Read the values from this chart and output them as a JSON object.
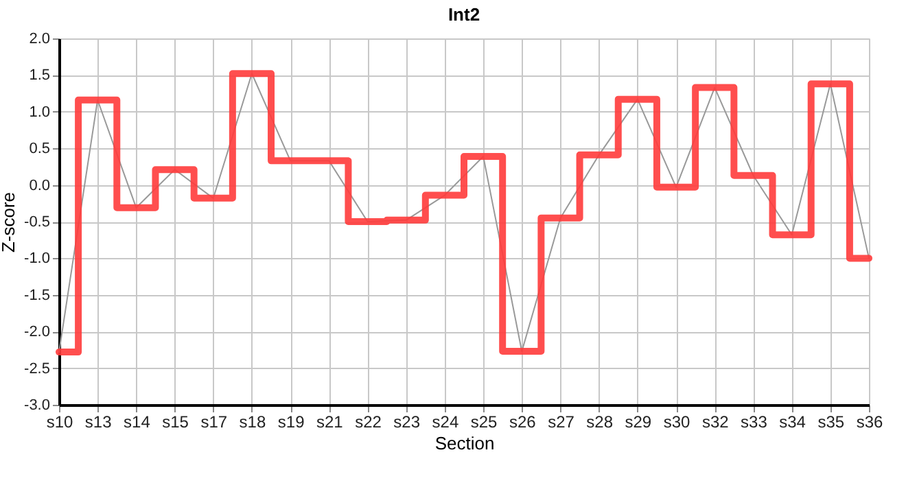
{
  "chart_data": {
    "type": "line",
    "title": "Int2",
    "xlabel": "Section",
    "ylabel": "Z-score",
    "categories": [
      "s10",
      "s13",
      "s14",
      "s15",
      "s17",
      "s18",
      "s19",
      "s21",
      "s22",
      "s23",
      "s24",
      "s25",
      "s26",
      "s27",
      "s28",
      "s29",
      "s30",
      "s32",
      "s33",
      "s34",
      "s35",
      "s36"
    ],
    "series": [
      {
        "color": "#999999",
        "values": [
          -2.28,
          1.16,
          -0.31,
          0.21,
          -0.18,
          1.52,
          0.33,
          0.33,
          -0.5,
          -0.48,
          -0.14,
          0.39,
          -2.27,
          -0.45,
          0.41,
          1.17,
          -0.03,
          1.33,
          0.13,
          -0.68,
          1.38,
          -1.0
        ]
      },
      {
        "type": "step",
        "color": "#ff3b3b",
        "values": [
          -2.28,
          1.16,
          -0.31,
          0.21,
          -0.18,
          1.52,
          0.33,
          0.33,
          -0.5,
          -0.48,
          -0.14,
          0.39,
          -2.27,
          -0.45,
          0.41,
          1.17,
          -0.03,
          1.33,
          0.13,
          -0.68,
          1.38,
          -1.0
        ]
      }
    ],
    "ylim": [
      -3.0,
      2.0
    ],
    "yticks": [
      {
        "value": -3,
        "label": "-3.0"
      },
      {
        "value": -2.5,
        "label": "-2.5"
      },
      {
        "value": -2,
        "label": "-2.0"
      },
      {
        "value": -1.5,
        "label": "-1.5"
      },
      {
        "value": -1,
        "label": "-1.0"
      },
      {
        "value": -0.5,
        "label": "-0.5"
      },
      {
        "value": 0,
        "label": "0.0"
      },
      {
        "value": 0.5,
        "label": "0.5"
      },
      {
        "value": 1,
        "label": "1.0"
      },
      {
        "value": 1.5,
        "label": "1.5"
      },
      {
        "value": 2,
        "label": "2.0"
      }
    ],
    "grid": true
  }
}
